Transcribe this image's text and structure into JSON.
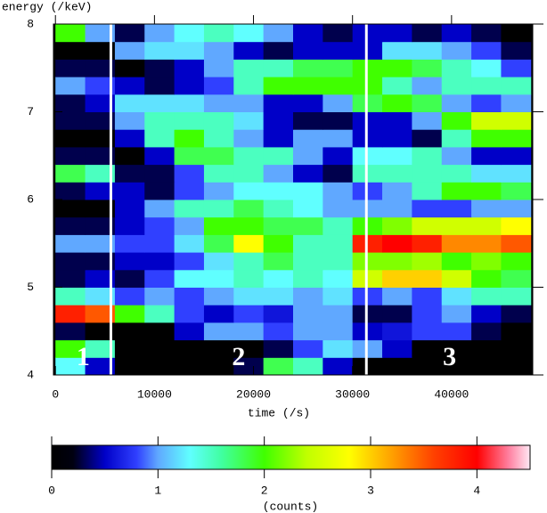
{
  "chart_data": {
    "type": "heatmap",
    "xlabel": "time (/s)",
    "ylabel": "energy (/keV)",
    "colorbar_label": "(counts)",
    "xbins": [
      0,
      3000,
      6000,
      9000,
      12000,
      15000,
      18000,
      21000,
      24000,
      27000,
      30000,
      33000,
      36000,
      39000,
      42000,
      45000,
      48000
    ],
    "ybins": [
      4.0,
      4.2,
      4.4,
      4.6,
      4.8,
      5.0,
      5.2,
      5.4,
      5.6,
      5.8,
      6.0,
      6.2,
      6.4,
      6.6,
      6.8,
      7.0,
      7.2,
      7.4,
      7.6,
      7.8,
      8.0
    ],
    "values": [
      [
        1.3,
        0.5,
        0,
        0,
        0,
        0,
        0.3,
        1.8,
        1.5,
        0.5,
        0,
        0,
        0,
        0,
        0,
        0
      ],
      [
        2.0,
        1.5,
        0,
        0,
        0,
        0,
        0,
        0.3,
        0.8,
        1.2,
        1.0,
        0.5,
        0,
        0,
        0,
        0
      ],
      [
        0.3,
        0,
        0,
        0,
        0.5,
        1.0,
        1.0,
        0.8,
        1.0,
        1.0,
        0.5,
        0.6,
        0.8,
        0.8,
        0.3,
        0
      ],
      [
        3.8,
        3.5,
        2.0,
        1.5,
        0.8,
        0.5,
        0.8,
        0.6,
        1.0,
        1.0,
        0.3,
        0.3,
        0.8,
        1.0,
        0.5,
        0.3
      ],
      [
        1.5,
        1.2,
        0.8,
        1.0,
        0.8,
        1.0,
        1.2,
        1.2,
        1.0,
        1.2,
        0.8,
        1.0,
        0.8,
        1.2,
        1.5,
        1.5
      ],
      [
        0.3,
        0.5,
        0.3,
        0.8,
        1.3,
        1.3,
        1.5,
        1.3,
        1.5,
        1.3,
        2.5,
        3.0,
        3.0,
        2.5,
        2.0,
        1.8
      ],
      [
        0.3,
        0.3,
        0.5,
        0.5,
        0.8,
        1.2,
        1.5,
        1.8,
        1.5,
        1.5,
        2.2,
        2.2,
        2.3,
        2.0,
        2.2,
        2.0
      ],
      [
        1.0,
        1.0,
        0.8,
        0.8,
        1.2,
        1.8,
        2.8,
        2.0,
        1.5,
        1.5,
        3.8,
        4.0,
        3.8,
        3.3,
        3.3,
        3.5
      ],
      [
        0.3,
        0.3,
        0.5,
        0.8,
        1.0,
        2.0,
        2.0,
        1.8,
        1.8,
        1.5,
        2.0,
        2.2,
        2.5,
        2.5,
        2.5,
        2.8
      ],
      [
        0,
        0,
        0.5,
        1.0,
        1.5,
        1.5,
        1.8,
        1.5,
        1.3,
        1.0,
        1.0,
        1.0,
        0.8,
        0.8,
        1.0,
        1.0
      ],
      [
        0.3,
        0.5,
        0.5,
        0.3,
        0.8,
        1.0,
        1.3,
        1.3,
        1.3,
        1.0,
        0.8,
        1.0,
        1.5,
        2.0,
        2.0,
        1.8
      ],
      [
        1.8,
        1.5,
        0.3,
        0.3,
        0.8,
        1.5,
        1.5,
        1.0,
        0.5,
        0.3,
        1.5,
        1.5,
        1.5,
        1.5,
        1.2,
        1.2
      ],
      [
        0.3,
        0.3,
        0,
        0.5,
        1.8,
        1.8,
        1.5,
        1.5,
        1.0,
        0.5,
        1.3,
        1.3,
        1.5,
        1.0,
        0.5,
        0.5
      ],
      [
        0,
        0,
        0.5,
        1.5,
        2.0,
        1.5,
        1.0,
        0.5,
        1.0,
        1.0,
        0.5,
        0.5,
        0.3,
        1.5,
        2.0,
        2.0
      ],
      [
        0.3,
        0.3,
        1.0,
        1.5,
        1.5,
        1.5,
        1.2,
        0.5,
        0.3,
        0.3,
        0.5,
        0.5,
        1.0,
        2.0,
        2.5,
        2.5
      ],
      [
        0.3,
        0.5,
        1.2,
        1.2,
        1.2,
        1.0,
        1.0,
        0.5,
        0.5,
        1.0,
        1.8,
        2.0,
        1.8,
        1.0,
        0.8,
        1.0
      ],
      [
        1.0,
        0.8,
        0.5,
        0.3,
        0.5,
        0.8,
        1.5,
        2.0,
        2.0,
        2.0,
        2.0,
        1.5,
        1.0,
        1.5,
        1.5,
        1.5
      ],
      [
        0.3,
        0.3,
        0,
        0.3,
        0.5,
        1.0,
        1.5,
        1.5,
        1.8,
        1.8,
        2.0,
        2.0,
        1.8,
        1.5,
        1.3,
        0.8
      ],
      [
        0,
        0,
        1.0,
        1.2,
        1.2,
        1.0,
        0.5,
        0.3,
        0.5,
        0.5,
        0.5,
        1.2,
        1.2,
        1.0,
        0.8,
        0.3
      ],
      [
        2.0,
        1.0,
        0.3,
        1.0,
        1.3,
        1.5,
        1.3,
        1.0,
        0.5,
        0.3,
        0.5,
        0.5,
        0.3,
        0.5,
        0.3,
        0
      ]
    ],
    "xlim": [
      -200,
      48200
    ],
    "xticks": [
      0,
      10000,
      20000,
      30000,
      40000
    ],
    "ylim": [
      4,
      8
    ],
    "yticks": [
      4,
      5,
      6,
      7,
      8
    ],
    "clim": [
      0,
      4.5
    ],
    "cticks": [
      0,
      1,
      2,
      3,
      4
    ],
    "colormap": [
      {
        "value": 0,
        "color": "#000000"
      },
      {
        "value": 0.2,
        "color": "#000010"
      },
      {
        "value": 0.5,
        "color": "#0000c8"
      },
      {
        "value": 0.8,
        "color": "#3040ff"
      },
      {
        "value": 1.0,
        "color": "#60a8ff"
      },
      {
        "value": 1.3,
        "color": "#60ffff"
      },
      {
        "value": 1.6,
        "color": "#40ffa0"
      },
      {
        "value": 2.0,
        "color": "#40ff00"
      },
      {
        "value": 2.4,
        "color": "#c0ff00"
      },
      {
        "value": 2.8,
        "color": "#ffff00"
      },
      {
        "value": 3.2,
        "color": "#ffa000"
      },
      {
        "value": 3.6,
        "color": "#ff4000"
      },
      {
        "value": 4.0,
        "color": "#ff0000"
      },
      {
        "value": 4.3,
        "color": "#ff80a0"
      },
      {
        "value": 4.5,
        "color": "#ffe8f4"
      }
    ],
    "dividers": [
      5600,
      31400
    ],
    "divider_color": "#ffffff",
    "annotations": [
      "1",
      "2",
      "3"
    ]
  }
}
